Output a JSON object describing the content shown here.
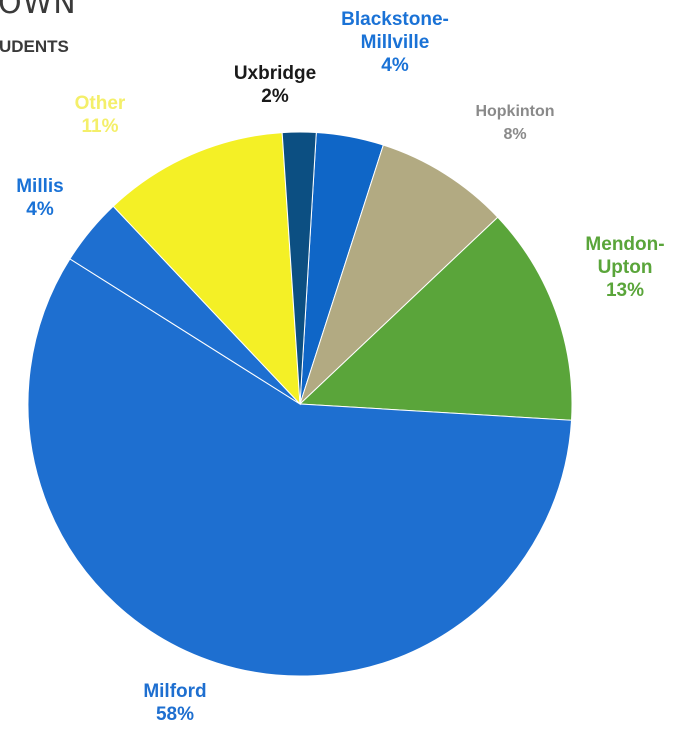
{
  "title_fragment": "OWN",
  "subtitle": "UDENTS",
  "chart_data": {
    "type": "pie",
    "title": "",
    "slices": [
      {
        "label": "Blackstone-Millville",
        "value": 4,
        "value_label": "4%",
        "color": "#0f66c7",
        "label_color": "#1a72d6"
      },
      {
        "label": "Hopkinton",
        "value": 8,
        "value_label": "8%",
        "color": "#b2aa82",
        "label_color": "#8a8a8a"
      },
      {
        "label": "Mendon-Upton",
        "value": 13,
        "value_label": "13%",
        "color": "#5aa53a",
        "label_color": "#5aa53a"
      },
      {
        "label": "Milford",
        "value": 58,
        "value_label": "58%",
        "color": "#1e6fd0",
        "label_color": "#1e6fd0"
      },
      {
        "label": "Millis",
        "value": 4,
        "value_label": "4%",
        "color": "#1e6fd0",
        "label_color": "#1a72d6"
      },
      {
        "label": "Other",
        "value": 11,
        "value_label": "11%",
        "color": "#f4f026",
        "label_color": "#f4ef6a"
      },
      {
        "label": "Uxbridge",
        "value": 2,
        "value_label": "2%",
        "color": "#0c4f82",
        "label_color": "#1a1a1a"
      }
    ]
  }
}
